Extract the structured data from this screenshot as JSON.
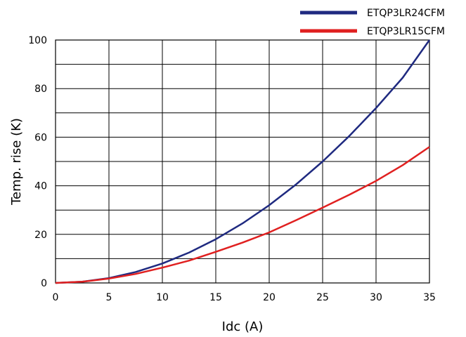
{
  "chart_data": {
    "type": "line",
    "xlabel": "Idc (A)",
    "ylabel": "Temp. rise (K)",
    "xlim": [
      0,
      35
    ],
    "ylim": [
      0,
      100
    ],
    "xticks": [
      "0",
      "5",
      "10",
      "15",
      "20",
      "25",
      "30",
      "35"
    ],
    "yticks": [
      "0",
      "20",
      "40",
      "60",
      "80",
      "100"
    ],
    "grid": true,
    "legend_position": "top-right",
    "series": [
      {
        "name": "ETQP3LR24CFM",
        "color": "#1f2a80",
        "x": [
          0,
          2.5,
          5,
          7.5,
          10,
          12.5,
          15,
          17.5,
          20,
          22.5,
          25,
          27.5,
          30,
          32.5,
          35
        ],
        "y": [
          0,
          0.5,
          2,
          4.5,
          8,
          12.5,
          18,
          24.5,
          32,
          40.5,
          50,
          60.5,
          72,
          84.5,
          100
        ]
      },
      {
        "name": "ETQP3LR15CFM",
        "color": "#e02020",
        "x": [
          0,
          2.5,
          5,
          7.5,
          10,
          12.5,
          15,
          17.5,
          20,
          22.5,
          25,
          27.5,
          30,
          32.5,
          35
        ],
        "y": [
          0,
          0.5,
          1.8,
          3.7,
          6.3,
          9.2,
          12.8,
          16.6,
          20.8,
          25.8,
          31,
          36.3,
          42,
          48.5,
          56
        ]
      }
    ]
  }
}
